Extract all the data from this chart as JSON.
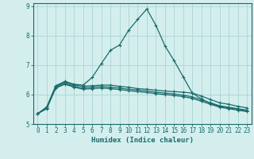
{
  "xlabel": "Humidex (Indice chaleur)",
  "bg_color": "#d4eeee",
  "grid_color": "#b0d8d8",
  "line_color": "#1a6b6b",
  "xlim": [
    -0.5,
    23.5
  ],
  "ylim": [
    5,
    9.1
  ],
  "yticks": [
    5,
    6,
    7,
    8,
    9
  ],
  "xticks": [
    0,
    1,
    2,
    3,
    4,
    5,
    6,
    7,
    8,
    9,
    10,
    11,
    12,
    13,
    14,
    15,
    16,
    17,
    18,
    19,
    20,
    21,
    22,
    23
  ],
  "lines": [
    {
      "x": [
        0,
        1,
        2,
        3,
        4,
        5,
        6,
        7,
        8,
        9,
        10,
        11,
        12,
        13,
        14,
        15,
        16,
        17,
        18,
        19,
        20,
        21,
        22,
        23
      ],
      "y": [
        5.35,
        5.58,
        6.3,
        6.45,
        6.35,
        6.32,
        6.58,
        7.05,
        7.5,
        7.68,
        8.18,
        8.55,
        8.9,
        8.35,
        7.65,
        7.15,
        6.6,
        6.05,
        5.85,
        5.7,
        5.6,
        5.55,
        5.5,
        5.45
      ]
    },
    {
      "x": [
        0,
        1,
        2,
        3,
        4,
        5,
        6,
        7,
        8,
        9,
        10,
        11,
        12,
        13,
        14,
        15,
        16,
        17,
        18,
        19,
        20,
        21,
        22,
        23
      ],
      "y": [
        5.35,
        5.55,
        6.28,
        6.42,
        6.32,
        6.28,
        6.3,
        6.32,
        6.32,
        6.28,
        6.25,
        6.2,
        6.18,
        6.15,
        6.12,
        6.1,
        6.08,
        6.05,
        5.95,
        5.83,
        5.72,
        5.67,
        5.6,
        5.55
      ]
    },
    {
      "x": [
        0,
        1,
        2,
        3,
        4,
        5,
        6,
        7,
        8,
        9,
        10,
        11,
        12,
        13,
        14,
        15,
        16,
        17,
        18,
        19,
        20,
        21,
        22,
        23
      ],
      "y": [
        5.35,
        5.53,
        6.25,
        6.38,
        6.28,
        6.22,
        6.25,
        6.27,
        6.25,
        6.22,
        6.18,
        6.15,
        6.12,
        6.08,
        6.05,
        6.02,
        5.98,
        5.92,
        5.82,
        5.72,
        5.62,
        5.57,
        5.52,
        5.47
      ]
    },
    {
      "x": [
        0,
        1,
        2,
        3,
        4,
        5,
        6,
        7,
        8,
        9,
        10,
        11,
        12,
        13,
        14,
        15,
        16,
        17,
        18,
        19,
        20,
        21,
        22,
        23
      ],
      "y": [
        5.35,
        5.52,
        6.22,
        6.35,
        6.25,
        6.18,
        6.2,
        6.22,
        6.2,
        6.17,
        6.13,
        6.1,
        6.07,
        6.03,
        6.0,
        5.97,
        5.93,
        5.87,
        5.77,
        5.67,
        5.57,
        5.52,
        5.47,
        5.42
      ]
    }
  ]
}
